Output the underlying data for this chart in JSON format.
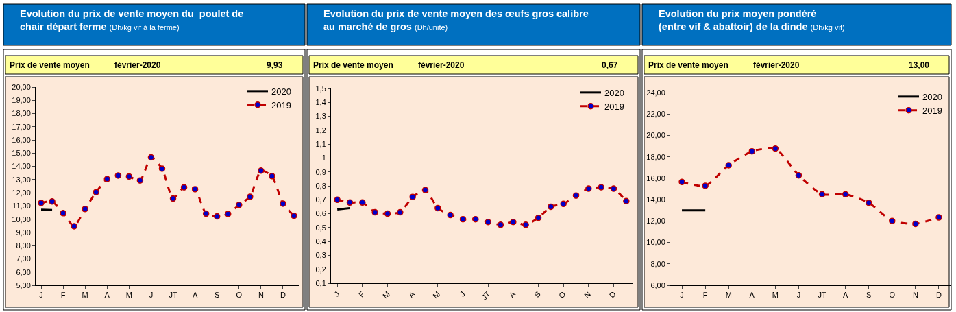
{
  "chart_data": [
    {
      "type": "line",
      "title": "Evolution du prix de vente moyen du  poulet de\nchair départ ferme",
      "subtitle": "(Dh/kg vif à la ferme)",
      "annotations": [
        "Prix de vente moyen",
        "février-2020",
        "9,93"
      ],
      "categories": [
        "J",
        null,
        "F",
        null,
        "M",
        null,
        "A",
        null,
        "M",
        null,
        "J",
        null,
        "JT",
        null,
        "A",
        null,
        "S",
        null,
        "O",
        null,
        "N",
        null,
        "D",
        null
      ],
      "series": [
        {
          "name": "2020",
          "color": "#000000",
          "line_style": "solid",
          "marker": "none",
          "values": [
            10.72,
            10.7,
            null,
            null,
            null,
            null,
            null,
            null,
            null,
            null,
            null,
            null,
            null,
            null,
            null,
            null,
            null,
            null,
            null,
            null,
            null,
            null,
            null,
            null
          ]
        },
        {
          "name": "2019",
          "color": "#c00000",
          "line_style": "dashed",
          "marker": "circle",
          "values": [
            11.23,
            11.34,
            10.46,
            9.47,
            10.78,
            12.05,
            13.04,
            13.31,
            13.23,
            12.93,
            14.68,
            13.83,
            11.56,
            12.41,
            12.27,
            10.42,
            10.21,
            10.4,
            11.08,
            11.7,
            13.68,
            13.26,
            11.18,
            10.26
          ]
        }
      ],
      "ylim": [
        5,
        20
      ],
      "yticks": [
        {
          "value": 5,
          "label": "5,00"
        },
        {
          "value": 6,
          "label": "6,00"
        },
        {
          "value": 7,
          "label": "7,00"
        },
        {
          "value": 8,
          "label": "8,00"
        },
        {
          "value": 9,
          "label": "9,00"
        },
        {
          "value": 10,
          "label": "10,00"
        },
        {
          "value": 11,
          "label": "11,00"
        },
        {
          "value": 12,
          "label": "12,00"
        },
        {
          "value": 13,
          "label": "13,00"
        },
        {
          "value": 14,
          "label": "14,00"
        },
        {
          "value": 15,
          "label": "15,00"
        },
        {
          "value": 16,
          "label": "16,00"
        },
        {
          "value": 17,
          "label": "17,00"
        },
        {
          "value": 18,
          "label": "18,00"
        },
        {
          "value": 19,
          "label": "19,00"
        },
        {
          "value": 20,
          "label": "20,00"
        }
      ],
      "grid": false,
      "legend": "top right"
    },
    {
      "type": "line",
      "title": "Evolution du prix de vente moyen des œufs gros calibre\nau marché de gros",
      "subtitle": "(Dh/unité)",
      "annotations": [
        "Prix de vente moyen",
        "février-2020",
        "0,67"
      ],
      "categories": [
        "J",
        null,
        "F",
        null,
        "M",
        null,
        "A",
        null,
        "M",
        null,
        "J",
        null,
        "JT",
        null,
        "A",
        null,
        "S",
        null,
        "O",
        null,
        "N",
        null,
        "D",
        null
      ],
      "series": [
        {
          "name": "2020",
          "color": "#000000",
          "line_style": "solid",
          "marker": "none",
          "values": [
            0.63,
            0.64,
            null,
            null,
            null,
            null,
            null,
            null,
            null,
            null,
            null,
            null,
            null,
            null,
            null,
            null,
            null,
            null,
            null,
            null,
            null,
            null,
            null,
            null
          ]
        },
        {
          "name": "2019",
          "color": "#c00000",
          "line_style": "dashed",
          "marker": "circle",
          "values": [
            0.7,
            0.68,
            0.68,
            0.61,
            0.6,
            0.61,
            0.72,
            0.77,
            0.64,
            0.59,
            0.56,
            0.56,
            0.54,
            0.52,
            0.54,
            0.52,
            0.57,
            0.65,
            0.67,
            0.73,
            0.78,
            0.79,
            0.78,
            0.69
          ]
        }
      ],
      "ylim": [
        0.1,
        1.5
      ],
      "yticks": [
        {
          "value": 0.1,
          "label": "0,1"
        },
        {
          "value": 0.2,
          "label": "0,2"
        },
        {
          "value": 0.3,
          "label": "0,3"
        },
        {
          "value": 0.4,
          "label": "0,4"
        },
        {
          "value": 0.5,
          "label": "0,5"
        },
        {
          "value": 0.6,
          "label": "0,6"
        },
        {
          "value": 0.7,
          "label": "0,7"
        },
        {
          "value": 0.8,
          "label": "0,8"
        },
        {
          "value": 0.9,
          "label": "0,9"
        },
        1,
        {
          "value": 1.1,
          "label": "1,1"
        },
        {
          "value": 1.2,
          "label": "1,2"
        },
        {
          "value": 1.3,
          "label": "1,3"
        },
        {
          "value": 1.4,
          "label": "1,4"
        },
        {
          "value": 1.5,
          "label": "1,5"
        }
      ],
      "grid": false,
      "legend": "top right"
    },
    {
      "type": "line",
      "title": "Evolution du prix moyen pondéré\n(entre vif & abattoir) de la dinde",
      "subtitle": "(Dh/kg vif)",
      "annotations": [
        "Prix de vente moyen",
        "février-2020",
        "13,00"
      ],
      "categories": [
        "J",
        "F",
        "M",
        "A",
        "M",
        "J",
        "JT",
        "A",
        "S",
        "O",
        "N",
        "D"
      ],
      "series": [
        {
          "name": "2020",
          "color": "#000000",
          "line_style": "solid",
          "marker": "none",
          "values": [
            13.0,
            13.0,
            null,
            null,
            null,
            null,
            null,
            null,
            null,
            null,
            null,
            null
          ]
        },
        {
          "name": "2019",
          "color": "#c00000",
          "line_style": "dashed",
          "marker": "circle",
          "values": [
            15.65,
            15.29,
            17.21,
            18.51,
            18.77,
            16.27,
            14.5,
            14.5,
            13.71,
            12.0,
            11.74,
            12.34
          ]
        }
      ],
      "ylim": [
        6,
        24
      ],
      "yticks": [
        {
          "value": 6,
          "label": "6,00"
        },
        {
          "value": 8,
          "label": "8,00"
        },
        {
          "value": 10,
          "label": "10,00"
        },
        {
          "value": 12,
          "label": "12,00"
        },
        {
          "value": 14,
          "label": "14,00"
        },
        {
          "value": 16,
          "label": "16,00"
        },
        {
          "value": 18,
          "label": "18,00"
        },
        {
          "value": 20,
          "label": "20,00"
        },
        {
          "value": 22,
          "label": "22,00"
        },
        {
          "value": 24,
          "label": "24,00"
        }
      ],
      "grid": false,
      "legend": "top right"
    }
  ]
}
